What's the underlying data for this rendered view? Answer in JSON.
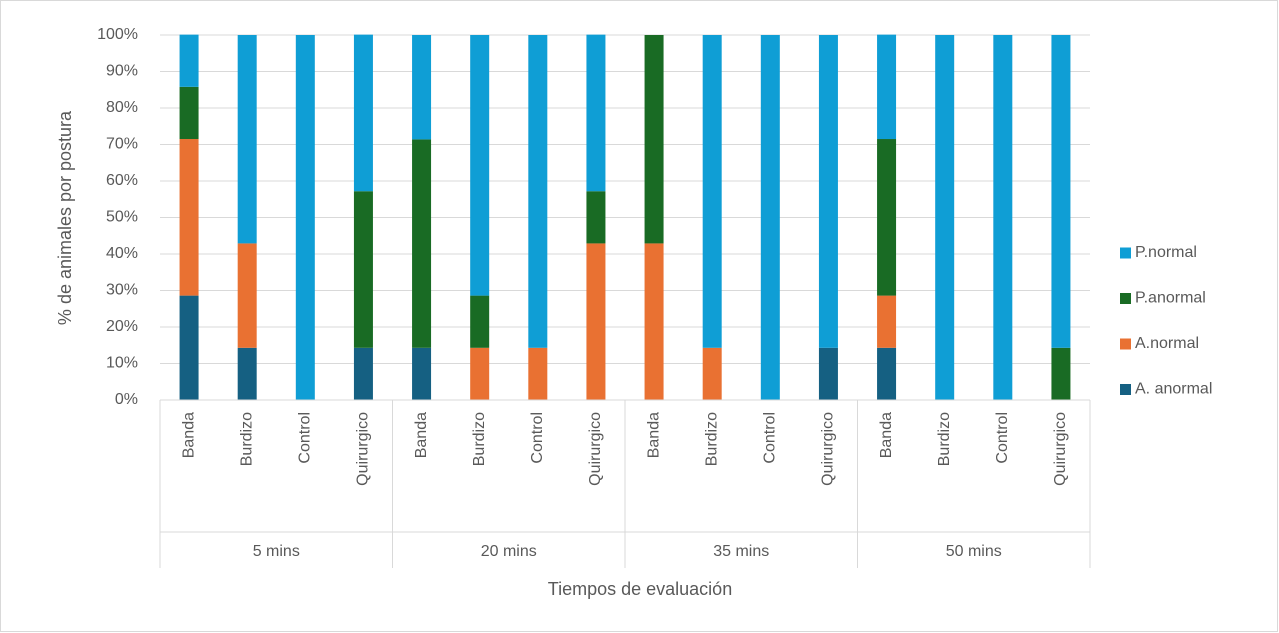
{
  "chart_data": {
    "type": "stacked_bar",
    "ylabel": "% de animales por postura",
    "xlabel": "Tiempos de evaluación",
    "groups": [
      {
        "label": "5 mins",
        "categories": [
          "Banda",
          "Burdizo",
          "Control",
          "Quirurgico"
        ]
      },
      {
        "label": "20 mins",
        "categories": [
          "Banda",
          "Burdizo",
          "Control",
          "Quirurgico"
        ]
      },
      {
        "label": "35 mins",
        "categories": [
          "Banda",
          "Burdizo",
          "Control",
          "Quirurgico"
        ]
      },
      {
        "label": "50 mins",
        "categories": [
          "Banda",
          "Burdizo",
          "Control",
          "Quirurgico"
        ]
      }
    ],
    "series": [
      {
        "name": "A. anormal",
        "color": "#156082",
        "values": [
          28.6,
          14.3,
          0,
          14.3,
          14.3,
          0,
          0,
          0,
          0,
          0,
          0,
          14.3,
          14.3,
          0,
          0,
          0
        ]
      },
      {
        "name": "A.normal",
        "color": "#e97132",
        "values": [
          42.9,
          28.6,
          0,
          0,
          0,
          14.3,
          14.3,
          42.9,
          42.9,
          14.3,
          0,
          0,
          14.3,
          0,
          0,
          0
        ]
      },
      {
        "name": "P.anormal",
        "color": "#196b24",
        "values": [
          14.3,
          0,
          0,
          42.9,
          57.1,
          14.3,
          0,
          14.3,
          57.1,
          0,
          0,
          0,
          42.9,
          0,
          0,
          14.3
        ]
      },
      {
        "name": "P.normal",
        "color": "#0f9ed5",
        "values": [
          14.3,
          57.1,
          100,
          42.9,
          28.6,
          71.4,
          85.7,
          42.9,
          0,
          85.7,
          100,
          85.7,
          28.6,
          100,
          100,
          85.7
        ]
      }
    ],
    "ylim": [
      0,
      100
    ],
    "yticks": [
      {
        "value": 0,
        "label": "0%"
      },
      {
        "value": 10,
        "label": "10%"
      },
      {
        "value": 20,
        "label": "20%"
      },
      {
        "value": 30,
        "label": "30%"
      },
      {
        "value": 40,
        "label": "40%"
      },
      {
        "value": 50,
        "label": "50%"
      },
      {
        "value": 60,
        "label": "60%"
      },
      {
        "value": 70,
        "label": "70%"
      },
      {
        "value": 80,
        "label": "80%"
      },
      {
        "value": 90,
        "label": "90%"
      },
      {
        "value": 100,
        "label": "100%"
      }
    ],
    "grid": true,
    "legend": "right"
  }
}
